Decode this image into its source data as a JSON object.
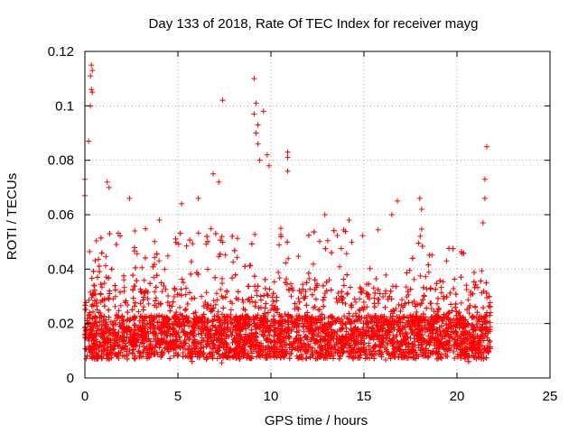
{
  "chart_data": {
    "type": "scatter",
    "title": "Day 133 of 2018, Rate Of TEC Index for receiver mayg",
    "xlabel": "GPS time / hours",
    "ylabel": "ROTI / TECUs",
    "xlim": [
      0,
      25
    ],
    "ylim": [
      0,
      0.12
    ],
    "xticks": [
      0,
      5,
      10,
      15,
      20,
      25
    ],
    "yticks": [
      0,
      0.02,
      0.04,
      0.06,
      0.08,
      0.1,
      0.12
    ],
    "xtick_labels": [
      "0",
      "5",
      "10",
      "15",
      "20",
      "25"
    ],
    "ytick_labels": [
      "0",
      "0.02",
      "0.04",
      "0.06",
      "0.08",
      "0.1",
      "0.12"
    ],
    "grid": true,
    "marker": "+",
    "marker_color": "#ff0000",
    "series": [
      {
        "name": "ROTI",
        "description_note": "dense band of points from 0 to ~21.8 h, mostly 0.005–0.03 TECU",
        "x_range": [
          0,
          21.8
        ],
        "typical_y_range": [
          0.005,
          0.03
        ],
        "highlight_points": [
          {
            "x": 0.35,
            "y": 0.115
          },
          {
            "x": 0.4,
            "y": 0.113
          },
          {
            "x": 0.3,
            "y": 0.111
          },
          {
            "x": 0.35,
            "y": 0.106
          },
          {
            "x": 0.4,
            "y": 0.105
          },
          {
            "x": 0.3,
            "y": 0.1
          },
          {
            "x": 0.2,
            "y": 0.087
          },
          {
            "x": 0.0,
            "y": 0.073
          },
          {
            "x": 0.0,
            "y": 0.067
          },
          {
            "x": 1.2,
            "y": 0.072
          },
          {
            "x": 1.3,
            "y": 0.07
          },
          {
            "x": 2.4,
            "y": 0.066
          },
          {
            "x": 4.0,
            "y": 0.058
          },
          {
            "x": 5.2,
            "y": 0.064
          },
          {
            "x": 6.1,
            "y": 0.066
          },
          {
            "x": 6.9,
            "y": 0.075
          },
          {
            "x": 7.2,
            "y": 0.072
          },
          {
            "x": 7.4,
            "y": 0.102
          },
          {
            "x": 9.1,
            "y": 0.11
          },
          {
            "x": 9.2,
            "y": 0.101
          },
          {
            "x": 9.1,
            "y": 0.097
          },
          {
            "x": 9.6,
            "y": 0.098
          },
          {
            "x": 9.3,
            "y": 0.093
          },
          {
            "x": 9.2,
            "y": 0.09
          },
          {
            "x": 9.3,
            "y": 0.086
          },
          {
            "x": 9.4,
            "y": 0.08
          },
          {
            "x": 9.8,
            "y": 0.082
          },
          {
            "x": 9.9,
            "y": 0.078
          },
          {
            "x": 10.9,
            "y": 0.083
          },
          {
            "x": 10.9,
            "y": 0.081
          },
          {
            "x": 10.9,
            "y": 0.076
          },
          {
            "x": 12.9,
            "y": 0.06
          },
          {
            "x": 14.2,
            "y": 0.058
          },
          {
            "x": 16.5,
            "y": 0.06
          },
          {
            "x": 16.8,
            "y": 0.065
          },
          {
            "x": 18.0,
            "y": 0.066
          },
          {
            "x": 18.1,
            "y": 0.062
          },
          {
            "x": 21.6,
            "y": 0.085
          },
          {
            "x": 21.5,
            "y": 0.073
          },
          {
            "x": 21.5,
            "y": 0.066
          },
          {
            "x": 21.4,
            "y": 0.057
          }
        ]
      }
    ]
  }
}
